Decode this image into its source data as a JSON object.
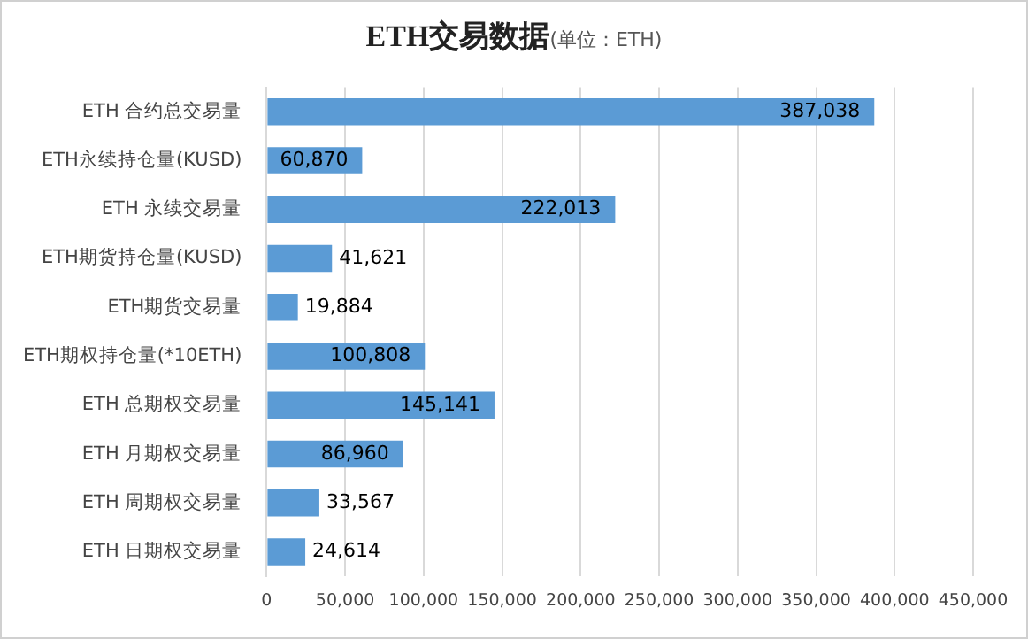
{
  "chart_data": {
    "type": "bar",
    "orientation": "horizontal",
    "title": "ETH交易数据",
    "subtitle": "(单位：ETH)",
    "categories": [
      "ETH 合约总交易量",
      "ETH永续持仓量(KUSD)",
      "ETH 永续交易量",
      "ETH期货持仓量(KUSD)",
      "ETH期货交易量",
      "ETH期权持仓量(*10ETH)",
      "ETH 总期权交易量",
      "ETH 月期权交易量",
      "ETH 周期权交易量",
      "ETH 日期权交易量"
    ],
    "values": [
      387038,
      60870,
      222013,
      41621,
      19884,
      100808,
      145141,
      86960,
      33567,
      24614
    ],
    "color": "#5b9bd5",
    "xlim": [
      0,
      450000
    ],
    "xticks": [
      {
        "value": 0,
        "label": "0"
      },
      {
        "value": 50000,
        "label": "50,000"
      },
      {
        "value": 100000,
        "label": "100,000"
      },
      {
        "value": 150000,
        "label": "150,000"
      },
      {
        "value": 200000,
        "label": "200,000"
      },
      {
        "value": 250000,
        "label": "250,000"
      },
      {
        "value": 300000,
        "label": "300,000"
      },
      {
        "value": 350000,
        "label": "350,000"
      },
      {
        "value": 400000,
        "label": "400,000"
      },
      {
        "value": 450000,
        "label": "450,000"
      }
    ],
    "value_labels": [
      "387,038",
      "60,870",
      "222,013",
      "41,621",
      "19,884",
      "100,808",
      "145,141",
      "86,960",
      "33,567",
      "24,614"
    ],
    "grid": "x",
    "legend": false
  }
}
